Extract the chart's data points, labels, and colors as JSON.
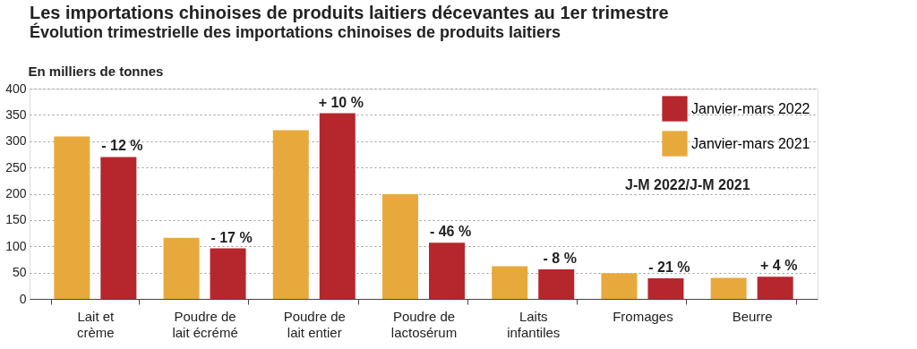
{
  "chart_data": {
    "type": "bar",
    "title": "Les importations chinoises de produits laitiers décevantes au 1er trimestre",
    "subtitle": "Évolution trimestrielle des importations chinoises de produits laitiers",
    "ylabel": "En milliers de tonnes",
    "categories": [
      "Lait et\ncrème",
      "Poudre de\nlait écrémé",
      "Poudre de\nlait entier",
      "Poudre de\nlactosérum",
      "Laits\ninfantiles",
      "Fromages",
      "Beurre"
    ],
    "series": [
      {
        "name": "Janvier-mars 2021",
        "color": "#e8a93c",
        "values": [
          309,
          116,
          321,
          199,
          62,
          49,
          40
        ]
      },
      {
        "name": "Janvier-mars 2022",
        "color": "#b5272c",
        "values": [
          270,
          96,
          353,
          107,
          56,
          39,
          42
        ]
      }
    ],
    "ylim": [
      0,
      400
    ],
    "yticks": [
      0,
      50,
      100,
      150,
      200,
      250,
      300,
      350,
      400
    ],
    "grid": "y",
    "legend": "top right",
    "annotations": [
      "J-M 2022/J-M 2021",
      "- 12 %",
      "- 17 %",
      "+ 10 %",
      "- 46 %",
      "- 8 %",
      "- 21 %",
      "+ 4 %"
    ]
  }
}
